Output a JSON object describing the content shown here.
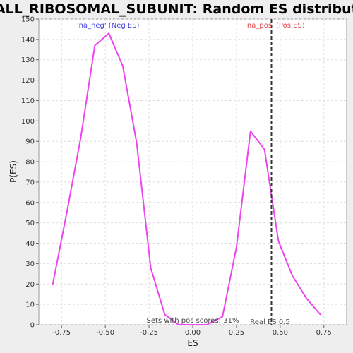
{
  "chart_data": {
    "type": "line",
    "title": "SMALL_RIBOSOMAL_SUBUNIT: Random ES distribution",
    "xlabel": "ES",
    "ylabel": "P(ES)",
    "xlim": [
      -0.88,
      0.88
    ],
    "ylim": [
      0,
      150
    ],
    "x_ticks": [
      -0.75,
      -0.5,
      -0.25,
      0.0,
      0.25,
      0.5,
      0.75
    ],
    "x_tick_labels": [
      "-0.75",
      "-0.50",
      "-0.25",
      "0.00",
      "0.25",
      "0.50",
      "0.75"
    ],
    "y_ticks": [
      0,
      10,
      20,
      30,
      40,
      50,
      60,
      70,
      80,
      90,
      100,
      110,
      120,
      130,
      140,
      150
    ],
    "grid": true,
    "series": [
      {
        "color": "#ee44ee",
        "x": [
          -0.8,
          -0.72,
          -0.64,
          -0.56,
          -0.48,
          -0.4,
          -0.32,
          -0.24,
          -0.16,
          -0.08,
          0.0,
          0.08,
          0.17,
          0.25,
          0.33,
          0.41,
          0.49,
          0.57,
          0.65,
          0.73
        ],
        "y": [
          20,
          55,
          92,
          137,
          143,
          127,
          89,
          28,
          5,
          0,
          0,
          0,
          4,
          38,
          95,
          86,
          41,
          24,
          13,
          5
        ]
      }
    ],
    "reference_line": {
      "x": 0.45,
      "label": "Real ES 0.5",
      "style": "dashed",
      "color": "#333333"
    },
    "annotations": {
      "neg": {
        "text": "'na_neg' (Neg ES)",
        "x": -0.5,
        "color": "#4444dd"
      },
      "pos": {
        "text": "'na_pos' (Pos ES)",
        "x": 0.47,
        "color": "#dd4444"
      },
      "sets": {
        "text": "Sets with pos scores: 31%",
        "x": 0.0
      }
    }
  }
}
